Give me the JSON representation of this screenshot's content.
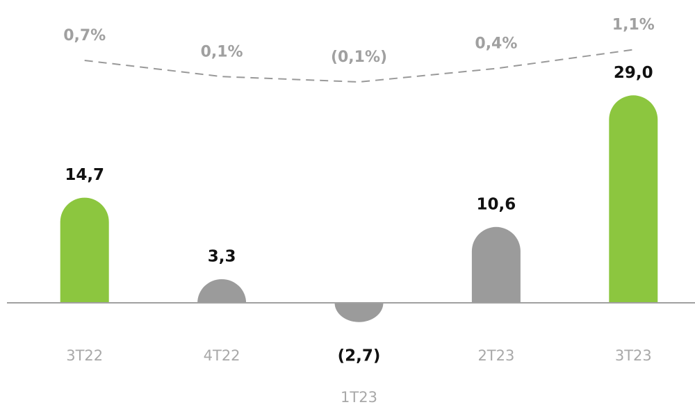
{
  "chart_data": {
    "type": "bar",
    "categories": [
      "3T22",
      "4T22",
      "1T23",
      "2T23",
      "3T23"
    ],
    "values": [
      14.7,
      3.3,
      -2.7,
      10.6,
      29.0
    ],
    "value_labels": [
      "14,7",
      "3,3",
      "(2,7)",
      "10,6",
      "29,0"
    ],
    "colors": [
      "#8cc63f",
      "#9b9b9b",
      "#9b9b9b",
      "#9b9b9b",
      "#8cc63f"
    ],
    "ylim": [
      -3.5,
      30
    ],
    "line": {
      "axis": "y2",
      "color": "#999999",
      "dashed": true,
      "values": [
        0.7,
        0.1,
        -0.1,
        0.4,
        1.1
      ],
      "value_labels": [
        "0,7%",
        "0,1%",
        "(0,1%)",
        "0,4%",
        "1,1%"
      ]
    },
    "y2lim": [
      -0.5,
      1.5
    ]
  }
}
